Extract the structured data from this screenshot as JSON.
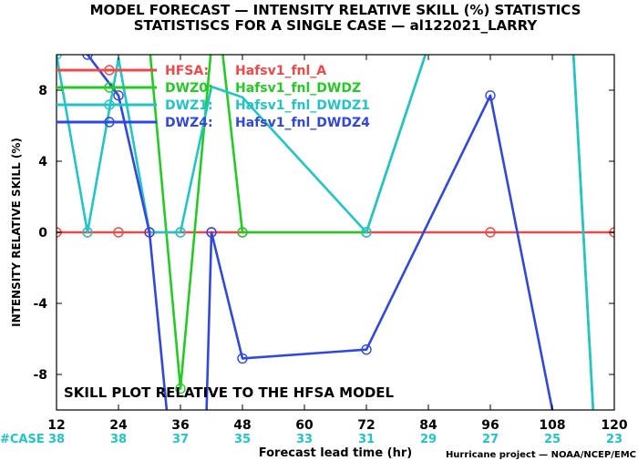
{
  "chart_data": {
    "type": "line",
    "title": "MODEL FORECAST — INTENSITY RELATIVE SKILL (%) STATISTICS",
    "subtitle": "STATISTISCS FOR A SINGLE CASE — al122021_LARRY",
    "ylabel": "INTENSITY RELATIVE SKILL (%)",
    "xlabel": "Forecast lead time (hr)",
    "xlim": [
      12,
      120
    ],
    "ylim": [
      -10,
      10
    ],
    "x_ticks": [
      12,
      24,
      36,
      48,
      60,
      72,
      84,
      96,
      108,
      120
    ],
    "y_ticks": [
      -8,
      -4,
      0,
      4,
      8
    ],
    "case_label": "#CASE",
    "case_counts": [
      "38",
      "38",
      "37",
      "35",
      "33",
      "31",
      "29",
      "27",
      "25",
      "23"
    ],
    "annotation": "SKILL PLOT RELATIVE TO THE HFSA MODEL",
    "credit": "Hurricane project — NOAA/NCEP/EMC",
    "legend_position": "top-left",
    "series": [
      {
        "name": "HFSA:",
        "desc": "Hafsv1_fnl_A",
        "color": "#f04848",
        "points": [
          [
            12,
            0
          ],
          [
            18,
            0
          ],
          [
            24,
            0
          ],
          [
            30,
            0
          ],
          [
            36,
            0
          ],
          [
            42,
            0
          ],
          [
            48,
            0
          ],
          [
            72,
            0
          ],
          [
            96,
            0
          ],
          [
            120,
            0
          ]
        ],
        "markers": [
          [
            12,
            0
          ],
          [
            18,
            0
          ],
          [
            24,
            0
          ],
          [
            30,
            0
          ],
          [
            36,
            0
          ],
          [
            42,
            0
          ],
          [
            48,
            0
          ],
          [
            72,
            0
          ],
          [
            96,
            0
          ],
          [
            120,
            0
          ]
        ]
      },
      {
        "name": "DWZ0:",
        "desc": "Hafsv1_fnl_DWDZ",
        "color": "#22cc22",
        "points": [
          [
            30,
            10.5
          ],
          [
            36,
            -8.8
          ],
          [
            42,
            10.5
          ],
          [
            44,
            10.5
          ],
          [
            48,
            0
          ],
          [
            72,
            0
          ],
          [
            84,
            10.5
          ],
          [
            112,
            10.5
          ],
          [
            116,
            -10.5
          ]
        ],
        "markers": [
          [
            36,
            -8.8
          ],
          [
            48,
            0
          ],
          [
            72,
            0
          ]
        ]
      },
      {
        "name": "DWZ1:",
        "desc": "Hafsv1_fnl_DWDZ1",
        "color": "#22c5c5",
        "points": [
          [
            12,
            10
          ],
          [
            18,
            0
          ],
          [
            24,
            9.8
          ],
          [
            30,
            0
          ],
          [
            36,
            0
          ],
          [
            42,
            8.2
          ],
          [
            48,
            7.6
          ],
          [
            72,
            0
          ],
          [
            84,
            10.5
          ],
          [
            112,
            10.5
          ],
          [
            116,
            -10.5
          ]
        ],
        "markers": [
          [
            12,
            10
          ],
          [
            18,
            0
          ],
          [
            36,
            0
          ],
          [
            72,
            0
          ]
        ]
      },
      {
        "name": "DWZ4:",
        "desc": "Hafsv1_fnl_DWDZ4",
        "color": "#3048e0",
        "points": [
          [
            18,
            10
          ],
          [
            24,
            7.7
          ],
          [
            30,
            0
          ],
          [
            33.5,
            -10.5
          ],
          [
            41,
            -10.5
          ],
          [
            42,
            0
          ],
          [
            48,
            -7.1
          ],
          [
            72,
            -6.6
          ],
          [
            96,
            7.7
          ],
          [
            108,
            -10
          ]
        ],
        "markers": [
          [
            18,
            10
          ],
          [
            24,
            7.7
          ],
          [
            30,
            0
          ],
          [
            42,
            0
          ],
          [
            48,
            -7.1
          ],
          [
            72,
            -6.6
          ],
          [
            96,
            7.7
          ]
        ]
      }
    ]
  }
}
